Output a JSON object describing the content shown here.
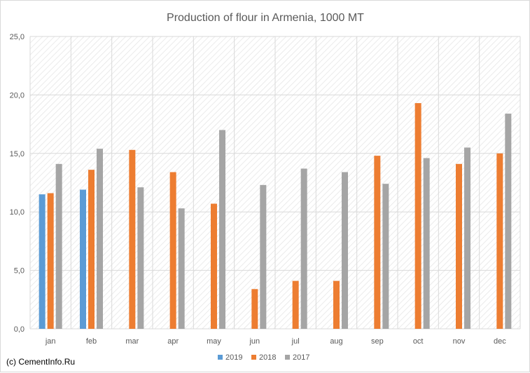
{
  "copyright": "(c) CementInfo.Ru",
  "colors": {
    "2019": "#5b9bd5",
    "2018": "#ed7d31",
    "2017": "#a5a5a5",
    "grid": "#d9d9d9",
    "text": "#595959",
    "hatch": "#e6e6e6"
  },
  "chart_data": {
    "type": "bar",
    "title": "Production of flour in Armenia, 1000 MT",
    "xlabel": "",
    "ylabel": "",
    "ylim": [
      0,
      25
    ],
    "yticks": [
      "0,0",
      "5,0",
      "10,0",
      "15,0",
      "20,0",
      "25,0"
    ],
    "ytick_values": [
      0,
      5,
      10,
      15,
      20,
      25
    ],
    "categories": [
      "jan",
      "feb",
      "mar",
      "apr",
      "may",
      "jun",
      "jul",
      "aug",
      "sep",
      "oct",
      "nov",
      "dec"
    ],
    "series": [
      {
        "name": "2019",
        "color": "#5b9bd5",
        "values": [
          11.5,
          11.9,
          null,
          null,
          null,
          null,
          null,
          null,
          null,
          null,
          null,
          null
        ]
      },
      {
        "name": "2018",
        "color": "#ed7d31",
        "values": [
          11.6,
          13.6,
          15.3,
          13.4,
          10.7,
          3.4,
          4.1,
          4.1,
          14.8,
          19.3,
          14.1,
          15.0
        ]
      },
      {
        "name": "2017",
        "color": "#a5a5a5",
        "values": [
          14.1,
          15.4,
          12.1,
          10.3,
          17.0,
          12.3,
          13.7,
          13.4,
          12.4,
          14.6,
          15.5,
          18.4
        ]
      }
    ],
    "legend_position": "bottom",
    "grid": true
  }
}
